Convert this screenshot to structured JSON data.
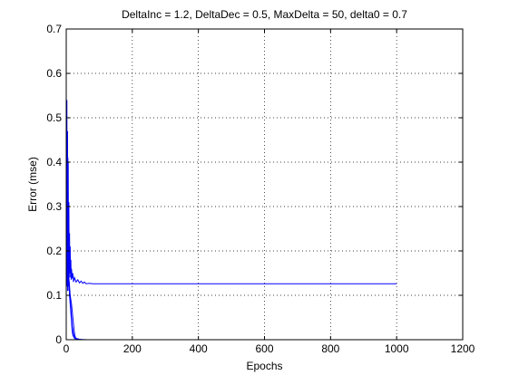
{
  "chart_data": {
    "type": "line",
    "title": "DeltaInc = 1.2, DeltaDec = 0.5, MaxDelta = 50, delta0 = 0.7",
    "xlabel": "Epochs",
    "ylabel": "Error (mse)",
    "xlim": [
      0,
      1200
    ],
    "ylim": [
      0,
      0.7
    ],
    "xticks": [
      "0",
      "200",
      "400",
      "600",
      "800",
      "1000",
      "1200"
    ],
    "yticks": [
      "0",
      "0.1",
      "0.2",
      "0.3",
      "0.4",
      "0.5",
      "0.6",
      "0.7"
    ],
    "grid": true,
    "line_color": "#0000ff",
    "series": [
      {
        "x": [
          0,
          2,
          3,
          4,
          5,
          6,
          7,
          8,
          9,
          10,
          11,
          12,
          13,
          14,
          15,
          16,
          18,
          20,
          22,
          25,
          30,
          35,
          40,
          45,
          50,
          55,
          60,
          70,
          80,
          100,
          200,
          400,
          600,
          800,
          1000
        ],
        "y": [
          0.33,
          0.54,
          0.18,
          0.47,
          0.2,
          0.4,
          0.16,
          0.31,
          0.14,
          0.24,
          0.15,
          0.21,
          0.14,
          0.18,
          0.135,
          0.16,
          0.138,
          0.15,
          0.13,
          0.14,
          0.13,
          0.135,
          0.128,
          0.132,
          0.127,
          0.13,
          0.126,
          0.127,
          0.126,
          0.126,
          0.126,
          0.126,
          0.126,
          0.126,
          0.126
        ]
      },
      {
        "x": [
          0,
          1,
          2,
          3,
          4,
          5,
          6,
          7,
          8,
          9,
          10,
          12,
          14,
          16,
          18,
          20,
          22,
          25,
          30,
          40,
          50,
          60
        ],
        "y": [
          0.25,
          0.44,
          0.16,
          0.37,
          0.14,
          0.41,
          0.13,
          0.2,
          0.12,
          0.13,
          0.1,
          0.09,
          0.07,
          0.05,
          0.03,
          0.02,
          0.012,
          0.006,
          0.003,
          0.001,
          0.0005,
          0.0003
        ]
      },
      {
        "x": [
          0,
          1,
          2,
          3,
          4,
          5,
          6,
          7,
          8,
          9,
          10,
          12,
          14,
          16,
          18,
          20,
          22,
          24,
          26,
          28,
          30,
          35,
          40
        ],
        "y": [
          0.2,
          0.35,
          0.12,
          0.3,
          0.11,
          0.26,
          0.12,
          0.15,
          0.14,
          0.13,
          0.12,
          0.1,
          0.09,
          0.08,
          0.065,
          0.05,
          0.035,
          0.02,
          0.01,
          0.005,
          0.002,
          0.0005,
          0.0002
        ]
      },
      {
        "x": [
          0,
          1,
          2,
          3,
          4,
          5,
          6,
          7,
          8,
          9,
          10,
          12,
          14,
          16,
          18,
          20,
          25,
          30
        ],
        "y": [
          0.22,
          0.37,
          0.14,
          0.33,
          0.13,
          0.21,
          0.12,
          0.14,
          0.11,
          0.12,
          0.1,
          0.08,
          0.06,
          0.04,
          0.02,
          0.01,
          0.003,
          0.001
        ]
      }
    ]
  }
}
